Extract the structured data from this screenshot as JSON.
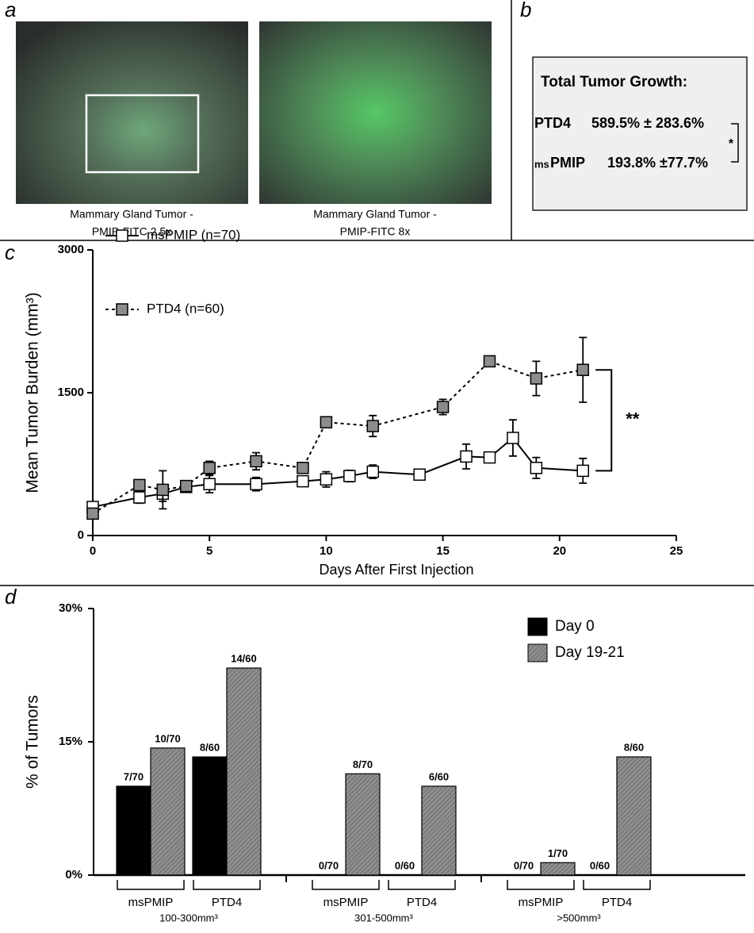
{
  "panels": {
    "a": {
      "label": "a",
      "images": [
        {
          "caption": [
            "Mammary Gland Tumor -",
            "PMIP-FITC 2.5x"
          ]
        },
        {
          "caption": [
            "Mammary Gland Tumor -",
            "PMIP-FITC 8x"
          ]
        }
      ]
    },
    "b": {
      "label": "b",
      "title": "Total Tumor Growth:",
      "rows": [
        {
          "name": "PTD4",
          "value": "589.5% ± 283.6%"
        },
        {
          "prefix": "ms",
          "name": "PMIP",
          "value": "193.8% ±77.7%"
        }
      ],
      "significance": "*"
    }
  },
  "chart_data": [
    {
      "type": "line",
      "panel_label": "c",
      "xlabel": "Days After First Injection",
      "ylabel": "Mean Tumor Burden (mm³)",
      "xlim": [
        0,
        25
      ],
      "ylim": [
        0,
        3000
      ],
      "xticks": [
        0,
        5,
        10,
        15,
        20,
        25
      ],
      "yticks": [
        0,
        1500,
        3000
      ],
      "legend": "top-left",
      "annotation": "**",
      "series": [
        {
          "name": "msPMIP (n=70)",
          "color": "#000000",
          "marker_fill": "#ffffff",
          "line_style": "solid",
          "x": [
            0,
            2,
            3,
            4,
            5,
            7,
            9,
            10,
            11,
            12,
            14,
            16,
            17,
            18,
            19,
            21
          ],
          "values": [
            300,
            400,
            440,
            510,
            540,
            540,
            570,
            590,
            625,
            670,
            640,
            830,
            820,
            1025,
            710,
            680
          ],
          "errors": [
            30,
            60,
            80,
            50,
            90,
            70,
            40,
            80,
            60,
            70,
            40,
            130,
            30,
            190,
            110,
            130
          ]
        },
        {
          "name": "PTD4 (n=60)",
          "color": "#000000",
          "marker_fill": "#8c8c8c",
          "line_style": "dashed",
          "x": [
            0,
            2,
            3,
            4,
            5,
            7,
            9,
            10,
            12,
            15,
            17,
            19,
            21
          ],
          "values": [
            230,
            530,
            480,
            520,
            710,
            780,
            710,
            1190,
            1150,
            1350,
            1830,
            1650,
            1740
          ],
          "errors": [
            20,
            30,
            200,
            40,
            70,
            90,
            30,
            40,
            110,
            80,
            30,
            180,
            340
          ]
        }
      ]
    },
    {
      "type": "bar",
      "panel_label": "d",
      "ylabel": "% of Tumors",
      "ylim": [
        0,
        30
      ],
      "yticks": [
        {
          "value": 0,
          "label": "0%"
        },
        {
          "value": 15,
          "label": "15%"
        },
        {
          "value": 30,
          "label": "30%"
        }
      ],
      "categories": [
        "msPMIP",
        "PTD4",
        "msPMIP",
        "PTD4",
        "msPMIP",
        "PTD4"
      ],
      "groups": [
        "100-300mm³",
        "301-500mm³",
        ">500mm³"
      ],
      "legend": "top-right",
      "series": [
        {
          "name": "Day 0",
          "color": "#000000",
          "pattern": "solid",
          "values": [
            10,
            13.3,
            0,
            0,
            0,
            0
          ],
          "value_labels": [
            "7/70",
            "8/60",
            "0/70",
            "0/60",
            "0/70",
            "0/60"
          ]
        },
        {
          "name": "Day 19-21",
          "color": "#8f8f8f",
          "pattern": "hatch",
          "values": [
            14.3,
            23.3,
            11.4,
            10,
            1.4,
            13.3
          ],
          "value_labels": [
            "10/70",
            "14/60",
            "8/70",
            "6/60",
            "1/70",
            "8/60"
          ]
        }
      ]
    }
  ]
}
